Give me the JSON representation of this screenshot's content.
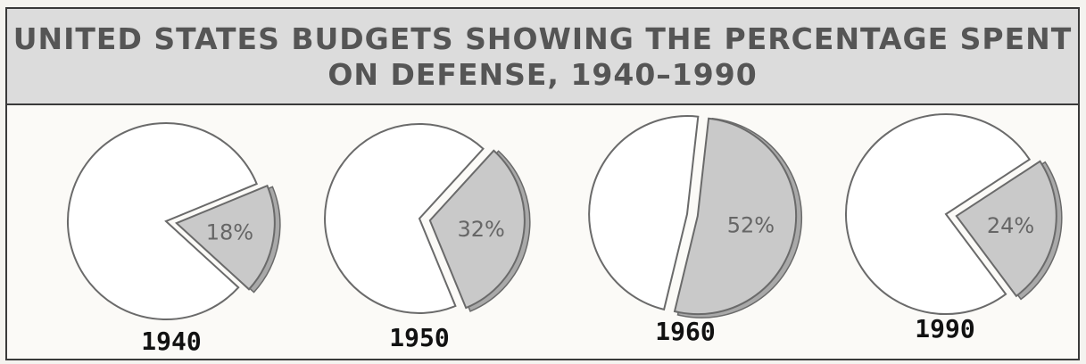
{
  "chart_data": {
    "type": "pie",
    "title_line1": "UNITED STATES BUDGETS SHOWING THE PERCENTAGE SPENT",
    "title_line2": "ON DEFENSE, 1940–1990",
    "charts": [
      {
        "year": "1940",
        "defense_percent": 18,
        "label": "18%"
      },
      {
        "year": "1950",
        "defense_percent": 32,
        "label": "32%"
      },
      {
        "year": "1960",
        "defense_percent": 52,
        "label": "52%"
      },
      {
        "year": "1990",
        "defense_percent": 24,
        "label": "24%"
      }
    ],
    "colors": {
      "defense_slice": "#c9c9c9",
      "remaining": "#ffffff",
      "outline": "#6a6a6a"
    }
  }
}
